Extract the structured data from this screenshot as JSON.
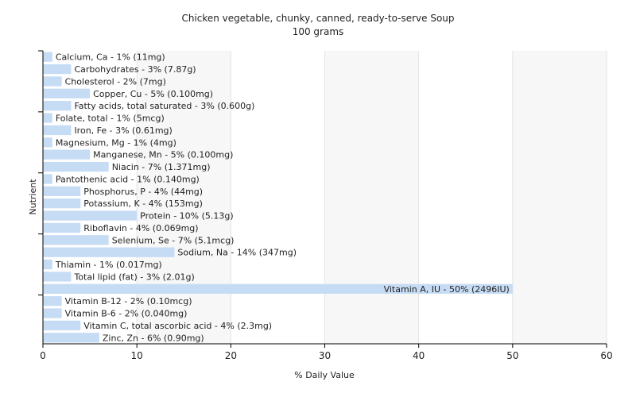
{
  "chart_data": {
    "type": "bar",
    "orientation": "horizontal",
    "title": "Chicken vegetable, chunky, canned, ready-to-serve Soup",
    "subtitle": "100 grams",
    "xlabel": "% Daily Value",
    "ylabel": "Nutrient",
    "xlim": [
      0,
      60
    ],
    "xticks": [
      0,
      10,
      20,
      30,
      40,
      50,
      60
    ],
    "grid": true,
    "bar_color": "#c6dcf5",
    "categories": [
      "Calcium, Ca",
      "Carbohydrates",
      "Cholesterol",
      "Copper, Cu",
      "Fatty acids, total saturated",
      "Folate, total",
      "Iron, Fe",
      "Magnesium, Mg",
      "Manganese, Mn",
      "Niacin",
      "Pantothenic acid",
      "Phosphorus, P",
      "Potassium, K",
      "Protein",
      "Riboflavin",
      "Selenium, Se",
      "Sodium, Na",
      "Thiamin",
      "Total lipid (fat)",
      "Vitamin A, IU",
      "Vitamin B-12",
      "Vitamin B-6",
      "Vitamin C, total ascorbic acid",
      "Zinc, Zn"
    ],
    "values": [
      1,
      3,
      2,
      5,
      3,
      1,
      3,
      1,
      5,
      7,
      1,
      4,
      4,
      10,
      4,
      7,
      14,
      1,
      3,
      50,
      2,
      2,
      4,
      6
    ],
    "labels": [
      "Calcium, Ca - 1% (11mg)",
      "Carbohydrates - 3% (7.87g)",
      "Cholesterol - 2% (7mg)",
      "Copper, Cu - 5% (0.100mg)",
      "Fatty acids, total saturated - 3% (0.600g)",
      "Folate, total - 1% (5mcg)",
      "Iron, Fe - 3% (0.61mg)",
      "Magnesium, Mg - 1% (4mg)",
      "Manganese, Mn - 5% (0.100mg)",
      "Niacin - 7% (1.371mg)",
      "Pantothenic acid - 1% (0.140mg)",
      "Phosphorus, P - 4% (44mg)",
      "Potassium, K - 4% (153mg)",
      "Protein - 10% (5.13g)",
      "Riboflavin - 4% (0.069mg)",
      "Selenium, Se - 7% (5.1mcg)",
      "Sodium, Na - 14% (347mg)",
      "Thiamin - 1% (0.017mg)",
      "Total lipid (fat) - 3% (2.01g)",
      "Vitamin A, IU - 50% (2496IU)",
      "Vitamin B-12 - 2% (0.10mcg)",
      "Vitamin B-6 - 2% (0.040mg)",
      "Vitamin C, total ascorbic acid - 4% (2.3mg)",
      "Zinc, Zn - 6% (0.90mg)"
    ]
  }
}
